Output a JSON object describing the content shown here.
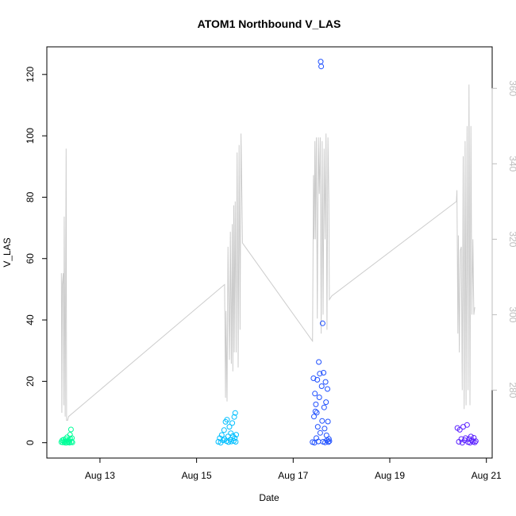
{
  "chart_data": {
    "type": "scatter",
    "title": "ATOM1 Northbound V_LAS",
    "xlabel": "Date",
    "ylabel": "V_LAS",
    "x_unit": "days in August",
    "xlim": [
      11.9,
      21.12
    ],
    "ylim": [
      -5,
      129
    ],
    "y2lim": [
      262,
      371
    ],
    "x_ticks": [
      {
        "value": 13,
        "label": "Aug 13"
      },
      {
        "value": 15,
        "label": "Aug 15"
      },
      {
        "value": 17,
        "label": "Aug 17"
      },
      {
        "value": 19,
        "label": "Aug 19"
      },
      {
        "value": 21,
        "label": "Aug 21"
      }
    ],
    "y_ticks": [
      0,
      20,
      40,
      60,
      80,
      100,
      120
    ],
    "y2_ticks": [
      280,
      300,
      320,
      340,
      360
    ],
    "y2_tick_color": "#bdbdbd",
    "line_color": "#cccccc",
    "point_groups": [
      {
        "color": "#00ff99",
        "x": [
          12.2,
          12.22,
          12.23,
          12.25,
          12.26,
          12.28,
          12.29,
          12.3,
          12.31,
          12.32,
          12.34,
          12.35,
          12.36,
          12.37,
          12.38,
          12.39,
          12.4,
          12.41,
          12.42,
          12.43
        ],
        "y": [
          0.2,
          0.8,
          0.1,
          1.0,
          0.3,
          0.0,
          1.2,
          0.5,
          0.0,
          1.8,
          0.4,
          0.2,
          0.9,
          0.0,
          2.6,
          1.2,
          4.3,
          0.3,
          1.5,
          0.1
        ]
      },
      {
        "color": "#00bfff",
        "x": [
          15.45,
          15.48,
          15.5,
          15.52,
          15.55,
          15.57,
          15.58,
          15.6,
          15.62,
          15.63,
          15.65,
          15.66,
          15.68,
          15.7,
          15.71,
          15.72,
          15.74,
          15.75,
          15.77,
          15.78,
          15.79,
          15.8,
          15.81,
          15.82
        ],
        "y": [
          0.3,
          1.5,
          0.0,
          2.5,
          0.8,
          4.1,
          1.2,
          6.8,
          0.5,
          7.5,
          2.0,
          0.2,
          5.2,
          1.0,
          3.1,
          0.4,
          6.4,
          2.2,
          0.6,
          8.4,
          1.5,
          9.7,
          0.3,
          2.6
        ]
      },
      {
        "color": "#1f50ff",
        "x": [
          17.4,
          17.42,
          17.43,
          17.44,
          17.45,
          17.46,
          17.47,
          17.48,
          17.49,
          17.5,
          17.51,
          17.52,
          17.53,
          17.54,
          17.55,
          17.56,
          17.57,
          17.58,
          17.59,
          17.6,
          17.61,
          17.62,
          17.63,
          17.64,
          17.65,
          17.66,
          17.67,
          17.68,
          17.69,
          17.7,
          17.71,
          17.72,
          17.73,
          17.74,
          17.75
        ],
        "y": [
          0.2,
          21.0,
          8.5,
          0.0,
          16.0,
          10.2,
          12.5,
          1.5,
          9.8,
          20.5,
          5.2,
          0.4,
          26.3,
          14.8,
          22.5,
          3.2,
          124.2,
          122.6,
          18.4,
          7.1,
          38.9,
          0.3,
          22.8,
          11.5,
          4.6,
          0.1,
          19.8,
          13.2,
          2.4,
          0.8,
          17.5,
          6.9,
          0.2,
          1.2,
          0.5
        ]
      },
      {
        "color": "#5b22ff",
        "x": [
          20.4,
          20.43,
          20.45,
          20.48,
          20.5,
          20.52,
          20.55,
          20.57,
          20.6,
          20.62,
          20.64,
          20.66,
          20.68,
          20.7,
          20.72,
          20.74,
          20.76,
          20.78
        ],
        "y": [
          4.8,
          0.3,
          4.2,
          1.2,
          0.0,
          5.2,
          0.8,
          1.5,
          5.8,
          0.2,
          1.2,
          0.0,
          2.0,
          0.8,
          0.3,
          1.6,
          0.1,
          0.5
        ]
      }
    ],
    "line_series": {
      "x": [
        12.2,
        12.21,
        12.22,
        12.24,
        12.25,
        12.26,
        12.28,
        12.3,
        12.31,
        12.33,
        12.35,
        15.58,
        15.6,
        15.61,
        15.63,
        15.65,
        15.68,
        15.7,
        15.72,
        15.74,
        15.75,
        15.77,
        15.78,
        15.8,
        15.82,
        15.84,
        15.86,
        15.88,
        15.9,
        15.92,
        15.94,
        15.95,
        17.4,
        17.42,
        17.43,
        17.45,
        17.46,
        17.48,
        17.5,
        17.52,
        17.54,
        17.56,
        17.58,
        17.6,
        17.62,
        17.64,
        17.66,
        17.68,
        17.7,
        17.72,
        17.74,
        17.75,
        17.8,
        20.38,
        20.39,
        20.41,
        20.42,
        20.44,
        20.46,
        20.48,
        20.5,
        20.52,
        20.54,
        20.56,
        20.58,
        20.6,
        20.62,
        20.64,
        20.66,
        20.68,
        20.7,
        20.72,
        20.74,
        20.76
      ],
      "y": [
        311,
        274,
        308,
        311,
        276,
        326,
        273,
        344,
        272,
        272,
        273,
        308,
        278,
        301,
        277,
        318,
        288,
        322,
        287,
        324,
        285,
        329,
        290,
        330,
        290,
        343,
        286,
        345,
        296,
        348,
        330,
        319,
        293,
        337,
        320,
        346,
        320,
        347,
        299,
        347,
        332,
        347,
        295,
        346,
        300,
        344,
        320,
        348,
        296,
        347,
        330,
        304,
        305,
        330,
        333,
        295,
        321,
        290,
        317,
        318,
        280,
        342,
        275,
        346,
        276,
        350,
        280,
        361,
        276,
        350,
        300,
        320,
        300,
        302
      ]
    }
  }
}
